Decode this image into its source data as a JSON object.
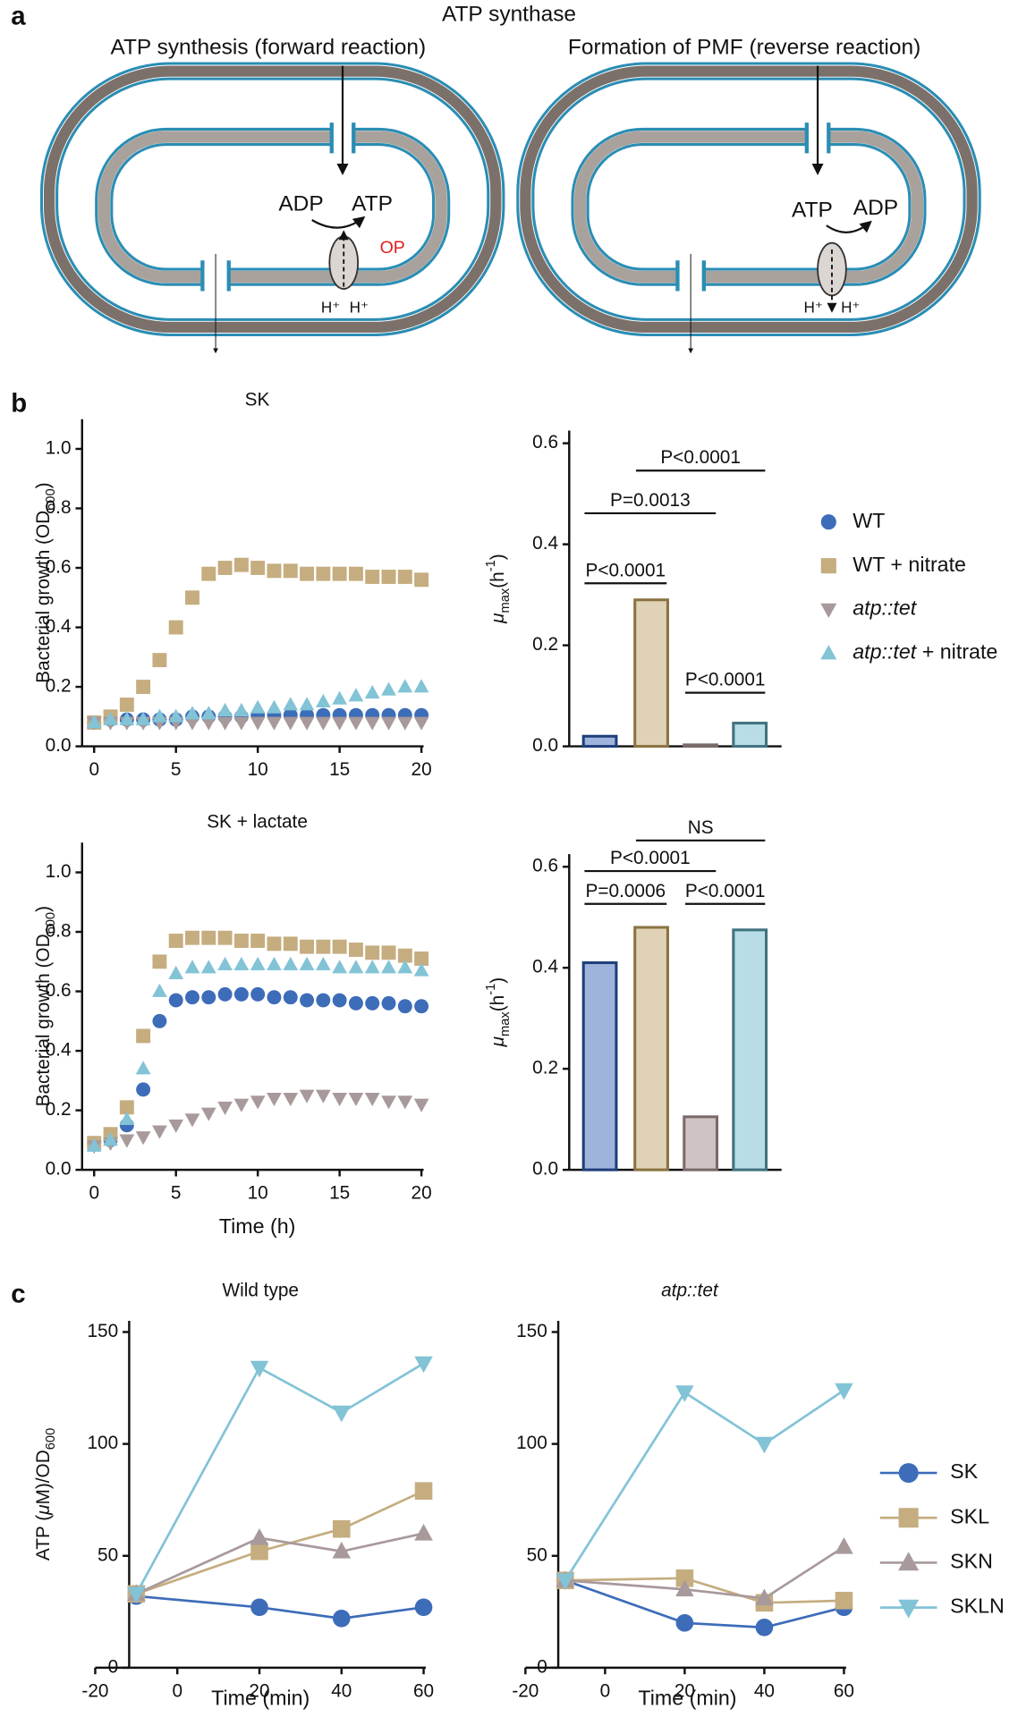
{
  "panel_labels": [
    "a",
    "b",
    "c"
  ],
  "diagram": {
    "title": "ATP synthase",
    "left": {
      "title": "ATP synthesis (forward reaction)",
      "labels": [
        "ADP",
        "ATP",
        "OP",
        "H⁺",
        "H⁺"
      ]
    },
    "right": {
      "title": "Formation of PMF (reverse reaction)",
      "labels": [
        "ATP",
        "ADP",
        "H⁺",
        "H⁺"
      ]
    }
  },
  "chart_data": [
    {
      "type": "scatter",
      "title": "SK",
      "y_label": [
        {
          "text": "Bacterial growth (OD"
        },
        {
          "text": "600",
          "sub": true
        },
        {
          "text": ")"
        }
      ],
      "x": [
        0,
        1,
        2,
        3,
        4,
        5,
        6,
        7,
        8,
        9,
        10,
        11,
        12,
        13,
        14,
        15,
        16,
        17,
        18,
        19,
        20
      ],
      "xlim": [
        0,
        20
      ],
      "xticks": [
        0,
        5,
        10,
        15,
        20
      ],
      "ylim": [
        0,
        1.1
      ],
      "yticks": [
        {
          "value": 0,
          "label": "0.0"
        },
        0.2,
        0.4,
        0.6,
        0.8,
        {
          "value": 1,
          "label": "1.0"
        }
      ],
      "legend": "right",
      "series": [
        {
          "name": "WT",
          "marker": "circle",
          "color": "#3d6cb9",
          "values": [
            0.08,
            0.09,
            0.09,
            0.09,
            0.09,
            0.09,
            0.1,
            0.1,
            0.1,
            0.1,
            0.105,
            0.105,
            0.105,
            0.105,
            0.105,
            0.105,
            0.105,
            0.105,
            0.105,
            0.105,
            0.105
          ]
        },
        {
          "name": "WT + nitrate",
          "marker": "square",
          "color": "#c5ad80",
          "values": [
            0.08,
            0.1,
            0.14,
            0.2,
            0.29,
            0.4,
            0.5,
            0.58,
            0.6,
            0.61,
            0.6,
            0.59,
            0.59,
            0.58,
            0.58,
            0.58,
            0.58,
            0.57,
            0.57,
            0.57,
            0.56
          ]
        },
        {
          "name": "atp::tet",
          "italic_prefix": true,
          "marker": "triangle-down",
          "color": "#a8999b",
          "values": [
            0.08,
            0.08,
            0.08,
            0.08,
            0.08,
            0.08,
            0.08,
            0.08,
            0.08,
            0.08,
            0.08,
            0.08,
            0.08,
            0.08,
            0.08,
            0.08,
            0.08,
            0.08,
            0.08,
            0.08,
            0.08
          ]
        },
        {
          "name": "atp::tet + nitrate",
          "italic_prefix": true,
          "marker": "triangle-up",
          "color": "#82c3d6",
          "values": [
            0.08,
            0.09,
            0.09,
            0.09,
            0.1,
            0.1,
            0.11,
            0.11,
            0.12,
            0.12,
            0.13,
            0.13,
            0.14,
            0.14,
            0.15,
            0.16,
            0.17,
            0.18,
            0.19,
            0.2,
            0.2
          ]
        }
      ]
    },
    {
      "type": "bar",
      "categories": [
        null,
        null,
        null,
        null
      ],
      "values": [
        0.02,
        0.29,
        0.003,
        0.046
      ],
      "colors": [
        "#9fb4dd",
        "#e0d2b6",
        "#cfc4c4",
        "#b8dde6"
      ],
      "edge_colors": [
        "#1f3f7a",
        "#8a7340",
        "#7a6a6a",
        "#41727f"
      ],
      "y_label": [
        {
          "text": "μ",
          "italic": true
        },
        {
          "text": "max",
          "sub": true
        },
        {
          "text": "(h"
        },
        {
          "text": "-1",
          "sup": true
        },
        {
          "text": ")"
        }
      ],
      "ylim": [
        0,
        0.625
      ],
      "yticks": [
        {
          "value": 0,
          "label": "0.0"
        },
        0.2,
        0.4,
        0.6
      ],
      "annotations": [
        "P<0.0001",
        "P=0.0013",
        "P<0.0001",
        "P<0.0001"
      ]
    },
    {
      "type": "scatter",
      "title": "SK + lactate",
      "x_label": "Time (h)",
      "y_label": [
        {
          "text": "Bacterial growth (OD"
        },
        {
          "text": "600",
          "sub": true
        },
        {
          "text": ")"
        }
      ],
      "x": [
        0,
        1,
        2,
        3,
        4,
        5,
        6,
        7,
        8,
        9,
        10,
        11,
        12,
        13,
        14,
        15,
        16,
        17,
        18,
        19,
        20
      ],
      "xlim": [
        0,
        20
      ],
      "xticks": [
        0,
        5,
        10,
        15,
        20
      ],
      "ylim": [
        0,
        1.1
      ],
      "yticks": [
        {
          "value": 0,
          "label": "0.0"
        },
        0.2,
        0.4,
        0.6,
        0.8,
        {
          "value": 1,
          "label": "1.0"
        }
      ],
      "series": [
        {
          "name": "WT",
          "marker": "circle",
          "color": "#3d6cb9",
          "values": [
            0.09,
            0.1,
            0.15,
            0.27,
            0.5,
            0.57,
            0.58,
            0.58,
            0.59,
            0.59,
            0.59,
            0.58,
            0.58,
            0.57,
            0.57,
            0.57,
            0.56,
            0.56,
            0.56,
            0.55,
            0.55
          ]
        },
        {
          "name": "WT + nitrate",
          "marker": "square",
          "color": "#c5ad80",
          "values": [
            0.09,
            0.12,
            0.21,
            0.45,
            0.7,
            0.77,
            0.78,
            0.78,
            0.78,
            0.77,
            0.77,
            0.76,
            0.76,
            0.75,
            0.75,
            0.75,
            0.74,
            0.73,
            0.73,
            0.72,
            0.71
          ]
        },
        {
          "name": "atp::tet",
          "italic_prefix": true,
          "marker": "triangle-down",
          "color": "#a8999b",
          "values": [
            0.08,
            0.09,
            0.1,
            0.11,
            0.13,
            0.15,
            0.17,
            0.19,
            0.21,
            0.22,
            0.23,
            0.24,
            0.24,
            0.25,
            0.25,
            0.24,
            0.24,
            0.24,
            0.23,
            0.23,
            0.22
          ]
        },
        {
          "name": "atp::tet + nitrate",
          "italic_prefix": true,
          "marker": "triangle-up",
          "color": "#82c3d6",
          "values": [
            0.08,
            0.1,
            0.17,
            0.34,
            0.6,
            0.66,
            0.68,
            0.68,
            0.69,
            0.69,
            0.69,
            0.69,
            0.69,
            0.69,
            0.69,
            0.68,
            0.68,
            0.68,
            0.68,
            0.68,
            0.67
          ]
        }
      ]
    },
    {
      "type": "bar",
      "categories": [
        null,
        null,
        null,
        null
      ],
      "values": [
        0.41,
        0.48,
        0.105,
        0.475
      ],
      "colors": [
        "#9fb4dd",
        "#e0d2b6",
        "#cfc4c4",
        "#b8dde6"
      ],
      "edge_colors": [
        "#1f3f7a",
        "#8a7340",
        "#7a6a6a",
        "#41727f"
      ],
      "y_label": [
        {
          "text": "μ",
          "italic": true
        },
        {
          "text": "max",
          "sub": true
        },
        {
          "text": "(h"
        },
        {
          "text": "-1",
          "sup": true
        },
        {
          "text": ")"
        }
      ],
      "ylim": [
        0,
        0.625
      ],
      "yticks": [
        {
          "value": 0,
          "label": "0.0"
        },
        0.2,
        0.4,
        0.6
      ],
      "annotations": [
        "NS",
        "P<0.0001",
        "P=0.0006",
        "P<0.0001"
      ]
    },
    {
      "type": "line",
      "title": "Wild type",
      "x_label": "Time (min)",
      "y_label": [
        {
          "text": "ATP ("
        },
        {
          "text": "μ",
          "italic": true
        },
        {
          "text": "M)/OD"
        },
        {
          "text": "600",
          "sub": true
        }
      ],
      "x": [
        -10,
        20,
        40,
        60
      ],
      "xlim": [
        -20,
        60
      ],
      "xticks": [
        -20,
        0,
        20,
        40,
        60
      ],
      "ylim": [
        0,
        155
      ],
      "yticks": [
        0,
        50,
        100,
        150
      ],
      "series": [
        {
          "name": "SK",
          "marker": "circle",
          "color": "#3d6cb9",
          "values": [
            32,
            27,
            22,
            27
          ]
        },
        {
          "name": "SKL",
          "marker": "square",
          "color": "#c5ad80",
          "values": [
            33,
            52,
            62,
            79
          ]
        },
        {
          "name": "SKN",
          "marker": "triangle-up",
          "color": "#a8999b",
          "values": [
            33,
            58,
            52,
            60
          ]
        },
        {
          "name": "SKLN",
          "marker": "triangle-down",
          "color": "#82c3d6",
          "values": [
            33,
            134,
            114,
            136
          ]
        }
      ]
    },
    {
      "type": "line",
      "title": "atp::tet",
      "title_italic": true,
      "x_label": "Time (min)",
      "x": [
        -10,
        20,
        40,
        60
      ],
      "xlim": [
        -20,
        60
      ],
      "xticks": [
        -20,
        0,
        20,
        40,
        60
      ],
      "ylim": [
        0,
        155
      ],
      "yticks": [
        0,
        50,
        100,
        150
      ],
      "legend": "right",
      "series": [
        {
          "name": "SK",
          "marker": "circle",
          "color": "#3d6cb9",
          "values": [
            39,
            20,
            18,
            27
          ]
        },
        {
          "name": "SKL",
          "marker": "square",
          "color": "#c5ad80",
          "values": [
            39,
            40,
            29,
            30
          ]
        },
        {
          "name": "SKN",
          "marker": "triangle-up",
          "color": "#a8999b",
          "values": [
            39,
            35,
            31,
            54
          ]
        },
        {
          "name": "SKLN",
          "marker": "triangle-down",
          "color": "#82c3d6",
          "values": [
            39,
            123,
            100,
            124
          ]
        }
      ]
    }
  ]
}
